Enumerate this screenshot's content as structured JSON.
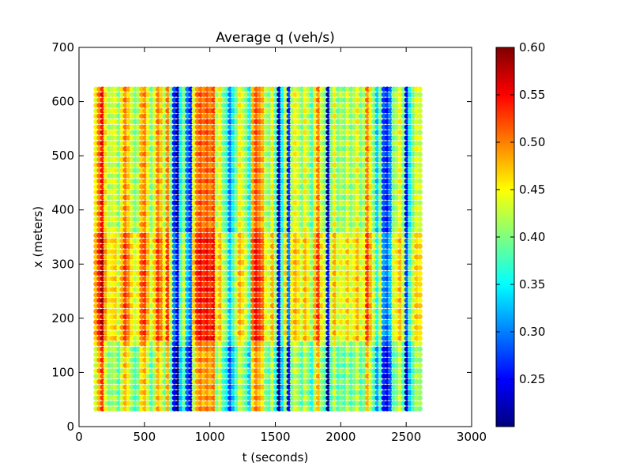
{
  "chart_data": {
    "type": "scatter",
    "title": "Average q (veh/s)",
    "xlabel": "t (seconds)",
    "ylabel": "x (meters)",
    "xlim": [
      0,
      3000
    ],
    "ylim": [
      0,
      700
    ],
    "xticks": [
      0,
      500,
      1000,
      1500,
      2000,
      2500,
      3000
    ],
    "yticks": [
      0,
      100,
      200,
      300,
      400,
      500,
      600,
      700
    ],
    "grid": false,
    "colormap": "jet",
    "colorbar": {
      "vmin": 0.2,
      "vmax": 0.6,
      "ticks": [
        "0.25",
        "0.30",
        "0.35",
        "0.40",
        "0.45",
        "0.50",
        "0.55",
        "0.60"
      ],
      "placement": "right"
    },
    "grid_points": {
      "t_start": 130,
      "t_step": 25,
      "t_count": 100,
      "x_start": 33,
      "x_step": 10,
      "x_count": 60
    },
    "time_profile": [
      {
        "t": 130,
        "v": 0.45
      },
      {
        "t": 155,
        "v": 0.5
      },
      {
        "t": 180,
        "v": 0.55
      },
      {
        "t": 205,
        "v": 0.46
      },
      {
        "t": 230,
        "v": 0.42
      },
      {
        "t": 255,
        "v": 0.43
      },
      {
        "t": 280,
        "v": 0.44
      },
      {
        "t": 305,
        "v": 0.4
      },
      {
        "t": 330,
        "v": 0.45
      },
      {
        "t": 355,
        "v": 0.5
      },
      {
        "t": 380,
        "v": 0.47
      },
      {
        "t": 405,
        "v": 0.43
      },
      {
        "t": 430,
        "v": 0.4
      },
      {
        "t": 455,
        "v": 0.42
      },
      {
        "t": 480,
        "v": 0.48
      },
      {
        "t": 505,
        "v": 0.5
      },
      {
        "t": 530,
        "v": 0.45
      },
      {
        "t": 555,
        "v": 0.4
      },
      {
        "t": 580,
        "v": 0.44
      },
      {
        "t": 605,
        "v": 0.5
      },
      {
        "t": 630,
        "v": 0.47
      },
      {
        "t": 655,
        "v": 0.42
      },
      {
        "t": 680,
        "v": 0.5
      },
      {
        "t": 705,
        "v": 0.4
      },
      {
        "t": 730,
        "v": 0.27
      },
      {
        "t": 755,
        "v": 0.22
      },
      {
        "t": 780,
        "v": 0.35
      },
      {
        "t": 805,
        "v": 0.4
      },
      {
        "t": 830,
        "v": 0.3
      },
      {
        "t": 855,
        "v": 0.26
      },
      {
        "t": 880,
        "v": 0.44
      },
      {
        "t": 905,
        "v": 0.5
      },
      {
        "t": 930,
        "v": 0.52
      },
      {
        "t": 955,
        "v": 0.5
      },
      {
        "t": 980,
        "v": 0.52
      },
      {
        "t": 1005,
        "v": 0.5
      },
      {
        "t": 1030,
        "v": 0.52
      },
      {
        "t": 1055,
        "v": 0.42
      },
      {
        "t": 1080,
        "v": 0.45
      },
      {
        "t": 1105,
        "v": 0.4
      },
      {
        "t": 1130,
        "v": 0.37
      },
      {
        "t": 1155,
        "v": 0.3
      },
      {
        "t": 1180,
        "v": 0.35
      },
      {
        "t": 1205,
        "v": 0.4
      },
      {
        "t": 1230,
        "v": 0.45
      },
      {
        "t": 1255,
        "v": 0.43
      },
      {
        "t": 1280,
        "v": 0.4
      },
      {
        "t": 1305,
        "v": 0.35
      },
      {
        "t": 1330,
        "v": 0.48
      },
      {
        "t": 1355,
        "v": 0.52
      },
      {
        "t": 1380,
        "v": 0.5
      },
      {
        "t": 1405,
        "v": 0.48
      },
      {
        "t": 1430,
        "v": 0.42
      },
      {
        "t": 1455,
        "v": 0.4
      },
      {
        "t": 1480,
        "v": 0.45
      },
      {
        "t": 1505,
        "v": 0.38
      },
      {
        "t": 1530,
        "v": 0.22
      },
      {
        "t": 1555,
        "v": 0.35
      },
      {
        "t": 1580,
        "v": 0.43
      },
      {
        "t": 1605,
        "v": 0.27
      },
      {
        "t": 1630,
        "v": 0.42
      },
      {
        "t": 1655,
        "v": 0.45
      },
      {
        "t": 1680,
        "v": 0.43
      },
      {
        "t": 1705,
        "v": 0.4
      },
      {
        "t": 1730,
        "v": 0.45
      },
      {
        "t": 1755,
        "v": 0.42
      },
      {
        "t": 1780,
        "v": 0.38
      },
      {
        "t": 1805,
        "v": 0.45
      },
      {
        "t": 1830,
        "v": 0.5
      },
      {
        "t": 1855,
        "v": 0.43
      },
      {
        "t": 1880,
        "v": 0.4
      },
      {
        "t": 1905,
        "v": 0.22
      },
      {
        "t": 1930,
        "v": 0.4
      },
      {
        "t": 1955,
        "v": 0.45
      },
      {
        "t": 1980,
        "v": 0.4
      },
      {
        "t": 2005,
        "v": 0.42
      },
      {
        "t": 2030,
        "v": 0.4
      },
      {
        "t": 2055,
        "v": 0.44
      },
      {
        "t": 2080,
        "v": 0.4
      },
      {
        "t": 2105,
        "v": 0.42
      },
      {
        "t": 2130,
        "v": 0.45
      },
      {
        "t": 2155,
        "v": 0.4
      },
      {
        "t": 2180,
        "v": 0.42
      },
      {
        "t": 2205,
        "v": 0.5
      },
      {
        "t": 2230,
        "v": 0.45
      },
      {
        "t": 2255,
        "v": 0.4
      },
      {
        "t": 2280,
        "v": 0.33
      },
      {
        "t": 2305,
        "v": 0.4
      },
      {
        "t": 2330,
        "v": 0.28
      },
      {
        "t": 2355,
        "v": 0.26
      },
      {
        "t": 2380,
        "v": 0.3
      },
      {
        "t": 2405,
        "v": 0.4
      },
      {
        "t": 2430,
        "v": 0.42
      },
      {
        "t": 2455,
        "v": 0.45
      },
      {
        "t": 2480,
        "v": 0.4
      },
      {
        "t": 2505,
        "v": 0.25
      },
      {
        "t": 2530,
        "v": 0.35
      },
      {
        "t": 2555,
        "v": 0.4
      },
      {
        "t": 2580,
        "v": 0.44
      },
      {
        "t": 2605,
        "v": 0.43
      }
    ],
    "band_offsets": [
      {
        "x_from": 33,
        "x_to": 150,
        "offset": -0.02
      },
      {
        "x_from": 160,
        "x_to": 360,
        "offset": 0.03
      },
      {
        "x_from": 370,
        "x_to": 630,
        "offset": 0.0
      }
    ]
  }
}
